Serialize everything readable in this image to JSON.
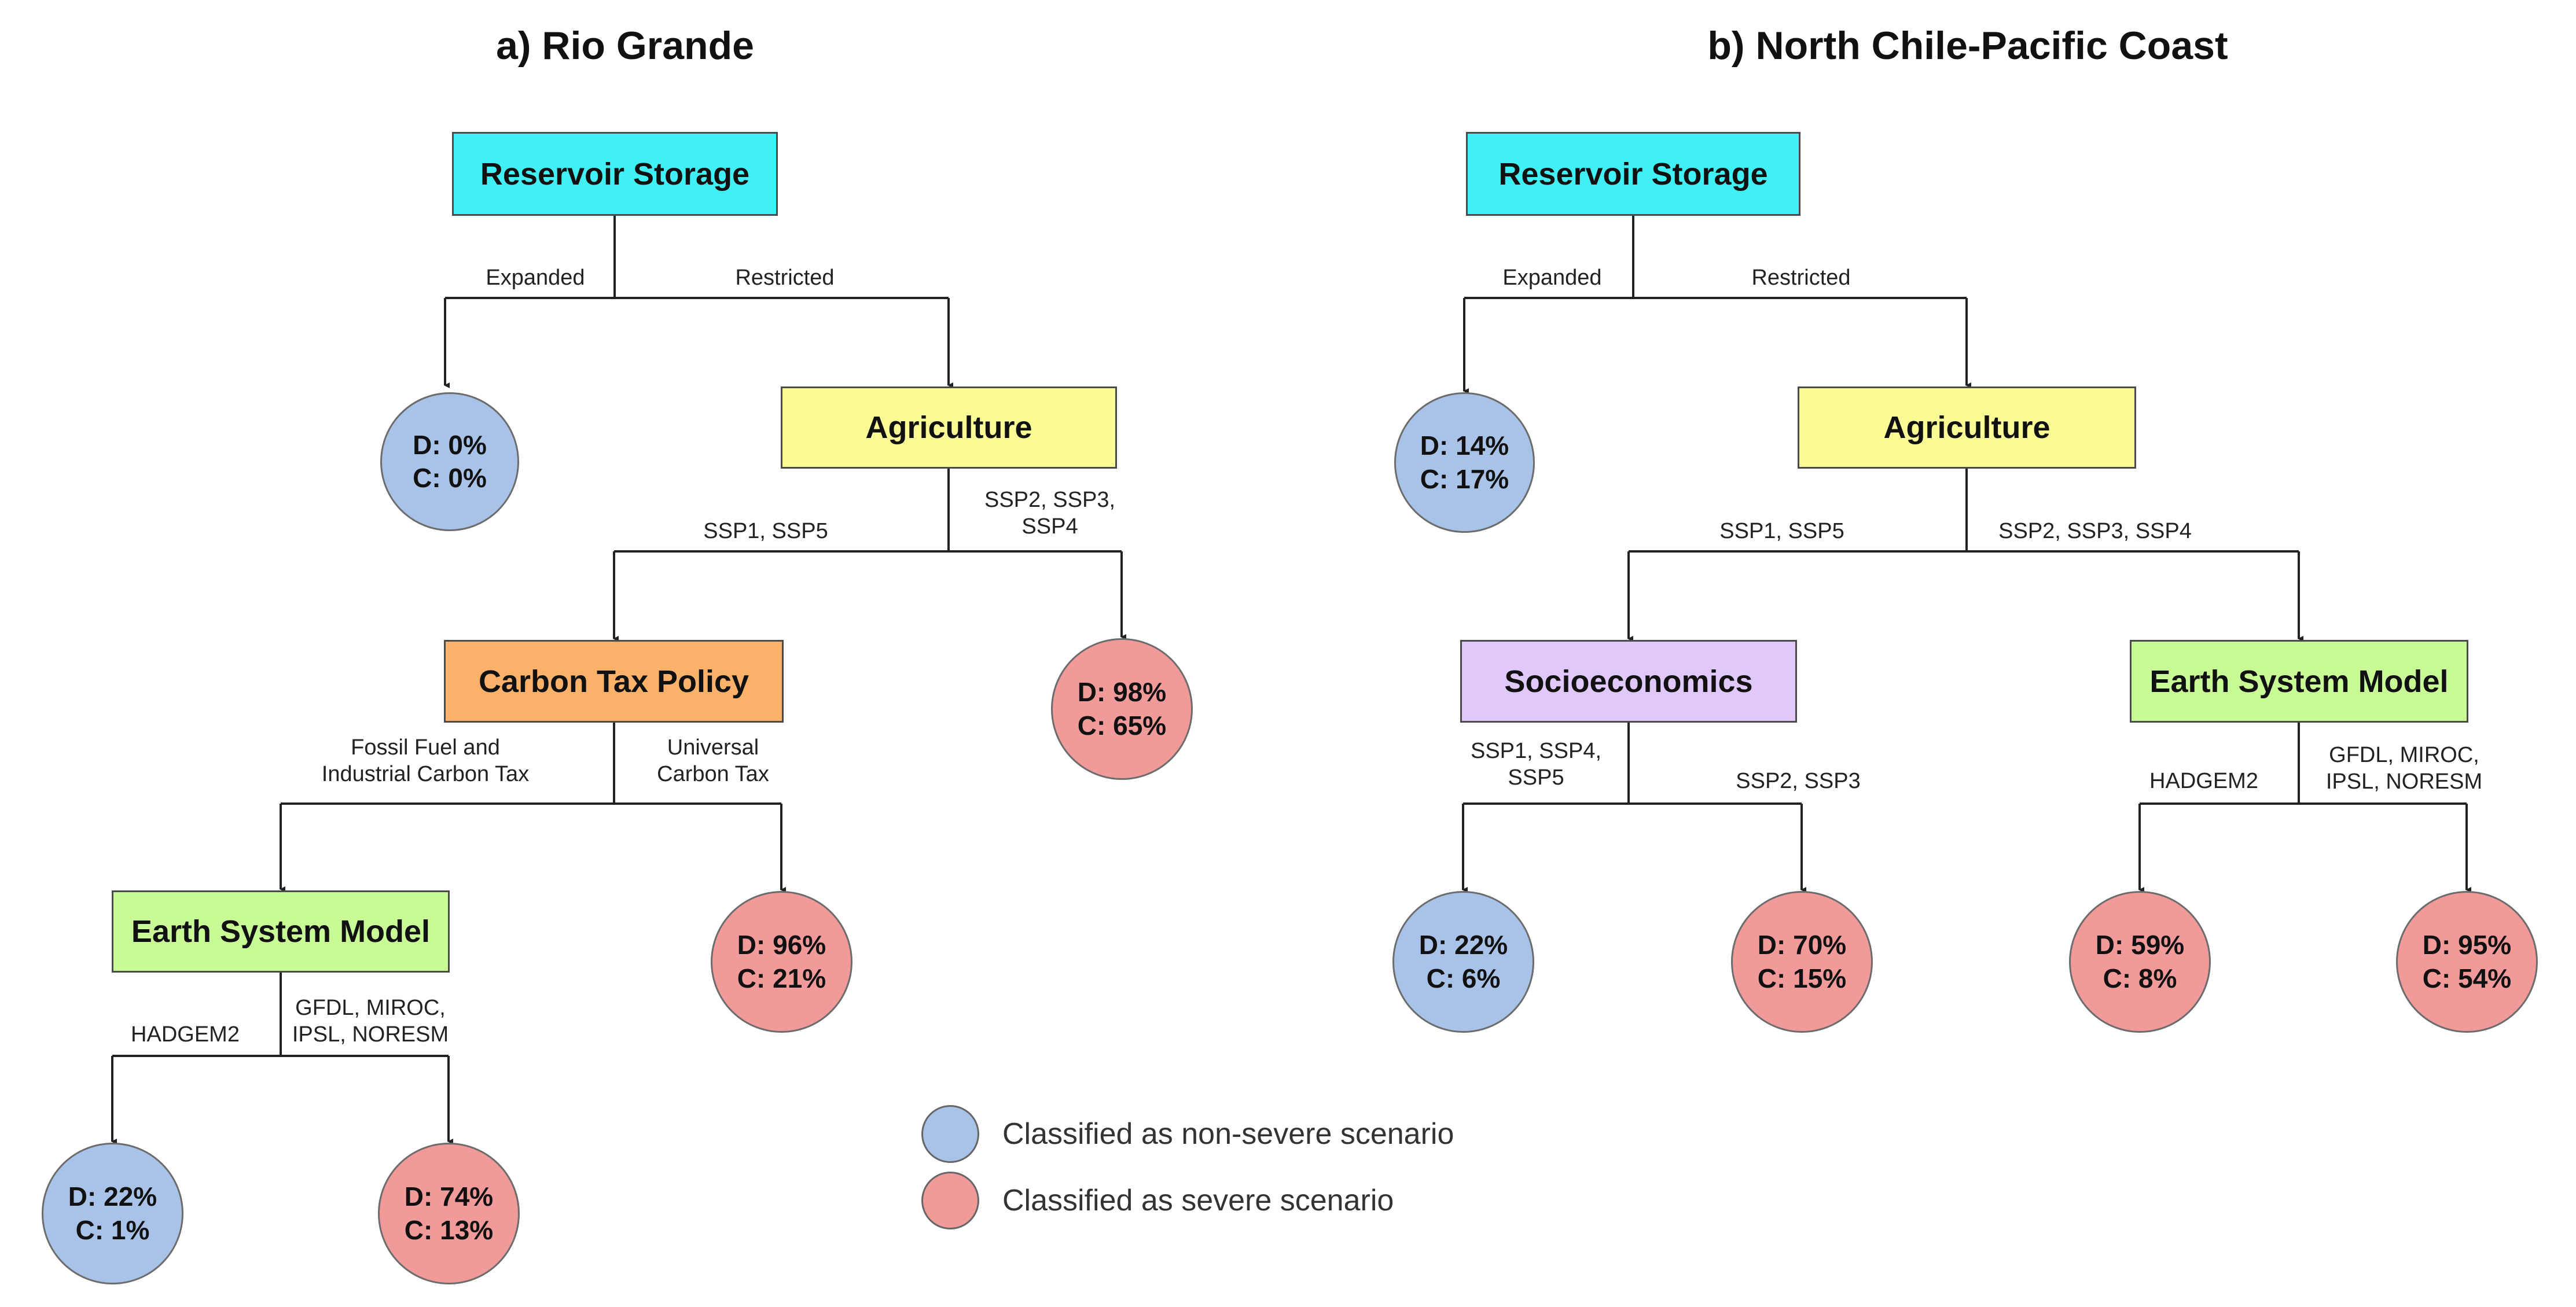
{
  "colors": {
    "reservoir": "#40f0f4",
    "agriculture": "#fbfb96",
    "carbon_tax": "#fab26a",
    "earth_system": "#c8fa96",
    "socioeconomics": "#e0c8fa",
    "non_severe": "#a9c3e8",
    "severe": "#f09a9a",
    "edge": "#222222"
  },
  "legend": {
    "non_severe": "Classified as non-severe scenario",
    "severe": "Classified as severe scenario"
  },
  "panel_a": {
    "title": "a) Rio Grande",
    "nodes": {
      "reservoir": "Reservoir Storage",
      "agriculture": "Agriculture",
      "carbon_tax": "Carbon Tax Policy",
      "earth_system": "Earth System Model"
    },
    "edges": {
      "expanded": "Expanded",
      "restricted": "Restricted",
      "ssp15": "SSP1, SSP5",
      "ssp234": [
        "SSP2, SSP3,",
        "SSP4"
      ],
      "fossil": [
        "Fossil Fuel and",
        "Industrial Carbon Tax"
      ],
      "universal": [
        "Universal",
        "Carbon Tax"
      ],
      "hadgem": "HADGEM2",
      "gfdl": [
        "GFDL, MIROC,",
        "IPSL, NORESM"
      ]
    },
    "leaves": {
      "expanded": {
        "d": "D: 0%",
        "c": "C: 0%",
        "severity": "non-severe"
      },
      "ssp234": {
        "d": "D: 98%",
        "c": "C: 65%",
        "severity": "severe"
      },
      "universal": {
        "d": "D: 96%",
        "c": "C: 21%",
        "severity": "severe"
      },
      "hadgem": {
        "d": "D: 22%",
        "c": "C: 1%",
        "severity": "non-severe"
      },
      "gfdl": {
        "d": "D: 74%",
        "c": "C: 13%",
        "severity": "severe"
      }
    }
  },
  "panel_b": {
    "title": "b) North Chile-Pacific Coast",
    "nodes": {
      "reservoir": "Reservoir Storage",
      "agriculture": "Agriculture",
      "socioeconomics": "Socioeconomics",
      "earth_system": "Earth System Model"
    },
    "edges": {
      "expanded": "Expanded",
      "restricted": "Restricted",
      "ssp15": "SSP1, SSP5",
      "ssp234": "SSP2, SSP3, SSP4",
      "ssp145": [
        "SSP1, SSP4,",
        "SSP5"
      ],
      "ssp23": "SSP2, SSP3",
      "hadgem": "HADGEM2",
      "gfdl": [
        "GFDL, MIROC,",
        "IPSL, NORESM"
      ]
    },
    "leaves": {
      "expanded": {
        "d": "D: 14%",
        "c": "C: 17%",
        "severity": "non-severe"
      },
      "ssp145": {
        "d": "D: 22%",
        "c": "C: 6%",
        "severity": "non-severe"
      },
      "ssp23": {
        "d": "D: 70%",
        "c": "C: 15%",
        "severity": "severe"
      },
      "hadgem": {
        "d": "D: 59%",
        "c": "C: 8%",
        "severity": "severe"
      },
      "gfdl": {
        "d": "D: 95%",
        "c": "C: 54%",
        "severity": "severe"
      }
    }
  }
}
